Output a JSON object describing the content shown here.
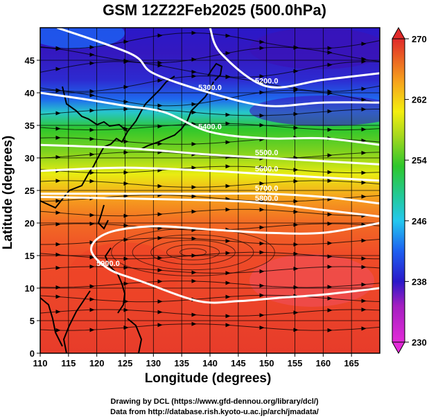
{
  "title": "GSM 12Z22Feb2025 (500.0hPa)",
  "xlabel": "Longitude (degrees)",
  "ylabel": "Latitude  (degrees)",
  "credit_line1": "Drawing by DCL (https://www.gfd-dennou.org/library/dcl/)",
  "credit_line2": "Data from http://database.rish.kyoto-u.ac.jp/arch/jmadata/",
  "chart_data": {
    "type": "heatmap",
    "xlim": [
      110,
      170
    ],
    "ylim": [
      0,
      50
    ],
    "xticks": [
      110,
      115,
      120,
      125,
      130,
      135,
      140,
      145,
      150,
      155,
      160,
      165
    ],
    "yticks": [
      0,
      5,
      10,
      15,
      20,
      25,
      30,
      35,
      40,
      45
    ],
    "grid": true,
    "colorbar": {
      "ticks": [
        230,
        238,
        246,
        254,
        262,
        270
      ],
      "range": [
        230,
        270
      ],
      "palette": [
        "#e22bd8",
        "#8a1fb8",
        "#2a18c9",
        "#1d5ff0",
        "#24c8ee",
        "#22c99a",
        "#2ec72c",
        "#a6d81d",
        "#f3ee0f",
        "#f6a21d",
        "#f2552a",
        "#e02a2a"
      ]
    },
    "temperature_bands": [
      {
        "lat_top": 50,
        "lat_bottom": 40,
        "value": 236
      },
      {
        "lat_top": 40,
        "lat_bottom": 36,
        "value": 246
      },
      {
        "lat_top": 36,
        "lat_bottom": 31,
        "value": 252
      },
      {
        "lat_top": 31,
        "lat_bottom": 26,
        "value": 257
      },
      {
        "lat_top": 26,
        "lat_bottom": 22,
        "value": 262
      },
      {
        "lat_top": 22,
        "lat_bottom": 0,
        "value": 268
      }
    ],
    "contours": [
      {
        "label": "5200.0",
        "points": [
          [
            140,
            50
          ],
          [
            142,
            46
          ],
          [
            150,
            41
          ],
          [
            160,
            42
          ],
          [
            170,
            43
          ]
        ]
      },
      {
        "label": "5300.0",
        "points": [
          [
            113,
            50
          ],
          [
            126,
            46
          ],
          [
            130,
            43
          ],
          [
            140,
            40
          ],
          [
            150,
            38
          ],
          [
            160,
            38.5
          ],
          [
            170,
            38.5
          ]
        ]
      },
      {
        "label": "5400.0",
        "points": [
          [
            110,
            40
          ],
          [
            118,
            39
          ],
          [
            125,
            38
          ],
          [
            132,
            37
          ],
          [
            140,
            34
          ],
          [
            150,
            33
          ],
          [
            160,
            33
          ],
          [
            170,
            32
          ]
        ]
      },
      {
        "label": "5500.0",
        "points": [
          [
            110,
            32
          ],
          [
            125,
            31.5
          ],
          [
            140,
            30.5
          ],
          [
            150,
            30
          ],
          [
            160,
            29.5
          ],
          [
            170,
            29
          ]
        ]
      },
      {
        "label": "5600.0",
        "points": [
          [
            110,
            28
          ],
          [
            125,
            28.5
          ],
          [
            140,
            28
          ],
          [
            150,
            27.5
          ],
          [
            160,
            27
          ],
          [
            170,
            26.5
          ]
        ]
      },
      {
        "label": "5700.0",
        "points": [
          [
            110,
            24.5
          ],
          [
            125,
            24.5
          ],
          [
            140,
            24.5
          ],
          [
            150,
            24.5
          ],
          [
            160,
            24
          ],
          [
            170,
            23
          ]
        ]
      },
      {
        "label": "5800.0",
        "points": [
          [
            110,
            24
          ],
          [
            140,
            23.5
          ],
          [
            150,
            23
          ],
          [
            160,
            22
          ],
          [
            170,
            21
          ]
        ]
      },
      {
        "label": "5900.0",
        "points": [
          [
            170,
            20
          ],
          [
            160,
            18.5
          ],
          [
            150,
            18.5
          ],
          [
            140,
            19
          ],
          [
            130,
            19.5
          ],
          [
            122,
            18.5
          ],
          [
            119,
            16
          ],
          [
            122,
            13
          ],
          [
            128,
            11
          ],
          [
            138,
            8
          ],
          [
            145,
            8
          ],
          [
            152,
            8.5
          ],
          [
            160,
            9
          ],
          [
            170,
            10
          ]
        ]
      }
    ]
  }
}
